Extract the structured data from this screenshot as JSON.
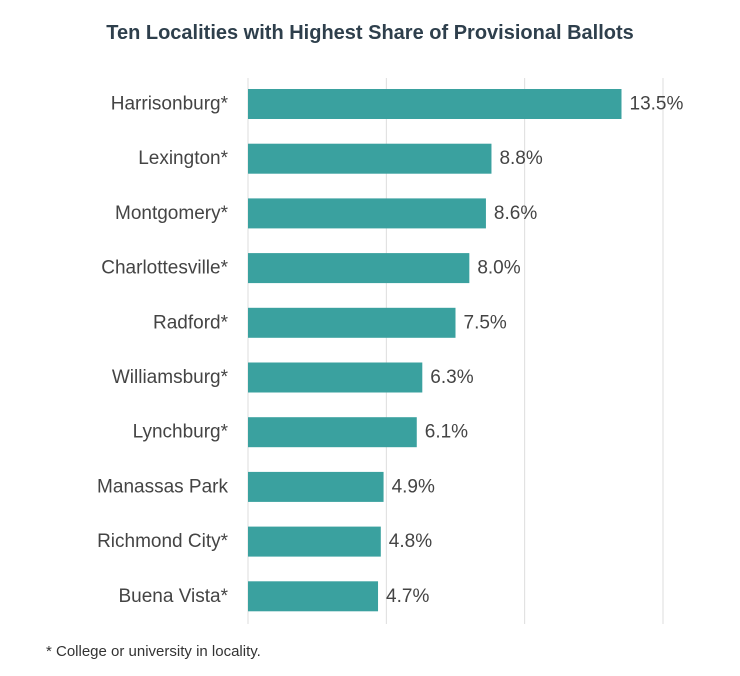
{
  "chart_data": {
    "type": "bar",
    "orientation": "horizontal",
    "title": "Ten Localities with Highest Share of Provisional Ballots",
    "categories": [
      "Harrisonburg*",
      "Lexington*",
      "Montgomery*",
      "Charlottesville*",
      "Radford*",
      "Williamsburg*",
      "Lynchburg*",
      "Manassas Park",
      "Richmond City*",
      "Buena Vista*"
    ],
    "values": [
      13.5,
      8.8,
      8.6,
      8.0,
      7.5,
      6.3,
      6.1,
      4.9,
      4.8,
      4.7
    ],
    "value_labels": [
      "13.5%",
      "8.8%",
      "8.6%",
      "8.0%",
      "7.5%",
      "6.3%",
      "6.1%",
      "4.9%",
      "4.8%",
      "4.7%"
    ],
    "xlim": [
      0,
      15
    ],
    "grid": true,
    "xlabel": "",
    "ylabel": ""
  },
  "footnote": "* College or university in locality.",
  "colors": {
    "bar": "#3aa19f",
    "grid": "#dddddd",
    "label": "#444444",
    "title": "#2e3f4c"
  }
}
